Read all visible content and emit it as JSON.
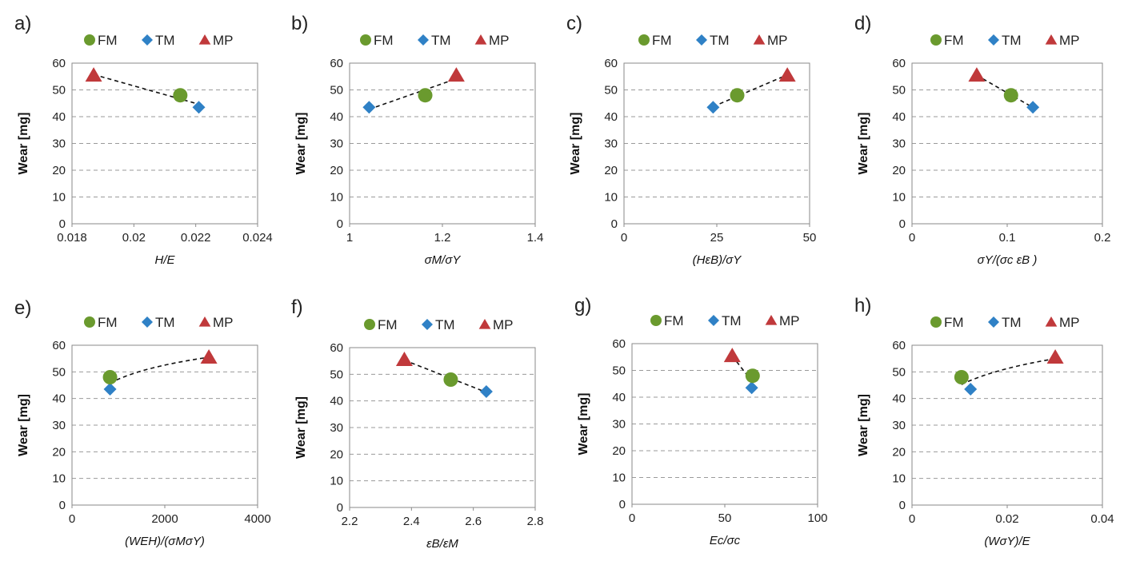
{
  "colors": {
    "FM": "#6a9a2e",
    "TM": "#2f81c6",
    "MP": "#c0393b"
  },
  "chart_data": [
    {
      "id": "a",
      "label": "a)",
      "type": "scatter",
      "legend": [
        "FM",
        "TM",
        "MP"
      ],
      "xlabel": "H/E",
      "ylabel": "Wear [mg]",
      "xlim": [
        0.018,
        0.024
      ],
      "xticks": [
        0.018,
        0.02,
        0.022,
        0.024
      ],
      "xtick_labels": [
        "0.018",
        "0.02",
        "0.022",
        "0.024"
      ],
      "ylim": [
        0,
        60
      ],
      "yticks": [
        0,
        10,
        20,
        30,
        40,
        50,
        60
      ],
      "ytick_labels": [
        "0",
        "10",
        "20",
        "30",
        "40",
        "50",
        "60"
      ],
      "points": {
        "FM": [
          0.0215,
          48
        ],
        "TM": [
          0.0221,
          43.5
        ],
        "MP": [
          0.0187,
          55.5
        ]
      },
      "trend": {
        "type": "linear",
        "x": [
          0.0187,
          0.0221
        ]
      }
    },
    {
      "id": "b",
      "label": "b)",
      "type": "scatter",
      "legend": [
        "FM",
        "TM",
        "MP"
      ],
      "xlabel": "σM/σY",
      "ylabel": "Wear [mg]",
      "xlim": [
        1,
        1.4
      ],
      "xticks": [
        1,
        1.2,
        1.4
      ],
      "xtick_labels": [
        "1",
        "1.2",
        "1.4"
      ],
      "ylim": [
        0,
        60
      ],
      "yticks": [
        0,
        10,
        20,
        30,
        40,
        50,
        60
      ],
      "ytick_labels": [
        "0",
        "10",
        "20",
        "30",
        "40",
        "50",
        "60"
      ],
      "points": {
        "FM": [
          1.163,
          48
        ],
        "TM": [
          1.042,
          43.5
        ],
        "MP": [
          1.23,
          55.5
        ]
      },
      "trend": {
        "type": "linear",
        "x": [
          1.042,
          1.23
        ]
      }
    },
    {
      "id": "c",
      "label": "c)",
      "type": "scatter",
      "legend": [
        "FM",
        "TM",
        "MP"
      ],
      "xlabel": "(HεB)/σY",
      "ylabel": "Wear [mg]",
      "xlim": [
        0,
        50
      ],
      "xticks": [
        0,
        25,
        50
      ],
      "xtick_labels": [
        "0",
        "25",
        "50"
      ],
      "ylim": [
        0,
        60
      ],
      "yticks": [
        0,
        10,
        20,
        30,
        40,
        50,
        60
      ],
      "ytick_labels": [
        "0",
        "10",
        "20",
        "30",
        "40",
        "50",
        "60"
      ],
      "points": {
        "FM": [
          30.5,
          48
        ],
        "TM": [
          24,
          43.5
        ],
        "MP": [
          44,
          55.5
        ]
      },
      "trend": {
        "type": "linear",
        "x": [
          24,
          44
        ]
      }
    },
    {
      "id": "d",
      "label": "d)",
      "type": "scatter",
      "legend": [
        "FM",
        "TM",
        "MP"
      ],
      "xlabel": "σY/(σc εB )",
      "ylabel": "Wear [mg]",
      "xlim": [
        0,
        0.2
      ],
      "xticks": [
        0,
        0.1,
        0.2
      ],
      "xtick_labels": [
        "0",
        "0.1",
        "0.2"
      ],
      "ylim": [
        0,
        60
      ],
      "yticks": [
        0,
        10,
        20,
        30,
        40,
        50,
        60
      ],
      "ytick_labels": [
        "0",
        "10",
        "20",
        "30",
        "40",
        "50",
        "60"
      ],
      "points": {
        "FM": [
          0.104,
          48
        ],
        "TM": [
          0.127,
          43.5
        ],
        "MP": [
          0.068,
          55.5
        ]
      },
      "trend": {
        "type": "linear",
        "x": [
          0.068,
          0.127
        ]
      }
    },
    {
      "id": "e",
      "label": "e)",
      "type": "scatter",
      "legend": [
        "FM",
        "TM",
        "MP"
      ],
      "xlabel": "(WEH)/(σMσY)",
      "ylabel": "Wear [mg]",
      "xlim": [
        0,
        4000
      ],
      "xticks": [
        0,
        2000,
        4000
      ],
      "xtick_labels": [
        "0",
        "2000",
        "4000"
      ],
      "ylim": [
        0,
        60
      ],
      "yticks": [
        0,
        10,
        20,
        30,
        40,
        50,
        60
      ],
      "ytick_labels": [
        "0",
        "10",
        "20",
        "30",
        "40",
        "50",
        "60"
      ],
      "points": {
        "FM": [
          820,
          48
        ],
        "TM": [
          820,
          43.5
        ],
        "MP": [
          2950,
          55.5
        ]
      },
      "trend": {
        "type": "log",
        "x": [
          820,
          2950
        ]
      }
    },
    {
      "id": "f",
      "label": "f)",
      "type": "scatter",
      "legend": [
        "FM",
        "TM",
        "MP"
      ],
      "xlabel": "εB/εM",
      "ylabel": "Wear [mg]",
      "xlim": [
        2.2,
        2.8
      ],
      "xticks": [
        2.2,
        2.4,
        2.6,
        2.8
      ],
      "xtick_labels": [
        "2.2",
        "2.4",
        "2.6",
        "2.8"
      ],
      "ylim": [
        0,
        60
      ],
      "yticks": [
        0,
        10,
        20,
        30,
        40,
        50,
        60
      ],
      "ytick_labels": [
        "0",
        "10",
        "20",
        "30",
        "40",
        "50",
        "60"
      ],
      "points": {
        "FM": [
          2.527,
          48
        ],
        "TM": [
          2.642,
          43.5
        ],
        "MP": [
          2.377,
          55.5
        ]
      },
      "trend": {
        "type": "linear",
        "x": [
          2.377,
          2.642
        ]
      }
    },
    {
      "id": "g",
      "label": "g)",
      "type": "scatter",
      "legend": [
        "FM",
        "TM",
        "MP"
      ],
      "xlabel": "Ec/σc",
      "ylabel": "Wear [mg]",
      "xlim": [
        0,
        100
      ],
      "xticks": [
        0,
        50,
        100
      ],
      "xtick_labels": [
        "0",
        "50",
        "100"
      ],
      "ylim": [
        0,
        60
      ],
      "yticks": [
        0,
        10,
        20,
        30,
        40,
        50,
        60
      ],
      "ytick_labels": [
        "0",
        "10",
        "20",
        "30",
        "40",
        "50",
        "60"
      ],
      "points": {
        "FM": [
          65,
          48
        ],
        "TM": [
          64.5,
          43.5
        ],
        "MP": [
          54,
          55.5
        ]
      },
      "trend": {
        "type": "linear",
        "x": [
          54,
          64.5
        ]
      }
    },
    {
      "id": "h",
      "label": "h)",
      "type": "scatter",
      "legend": [
        "FM",
        "TM",
        "MP"
      ],
      "xlabel": "(WσY)/E",
      "ylabel": "Wear [mg]",
      "xlim": [
        0,
        0.04
      ],
      "xticks": [
        0,
        0.02,
        0.04
      ],
      "xtick_labels": [
        "0",
        "0.02",
        "0.04"
      ],
      "ylim": [
        0,
        60
      ],
      "yticks": [
        0,
        10,
        20,
        30,
        40,
        50,
        60
      ],
      "ytick_labels": [
        "0",
        "10",
        "20",
        "30",
        "40",
        "50",
        "60"
      ],
      "points": {
        "FM": [
          0.0104,
          48
        ],
        "TM": [
          0.0123,
          43.5
        ],
        "MP": [
          0.0301,
          55.5
        ]
      },
      "trend": {
        "type": "log",
        "x": [
          0.0104,
          0.0301
        ]
      }
    }
  ]
}
